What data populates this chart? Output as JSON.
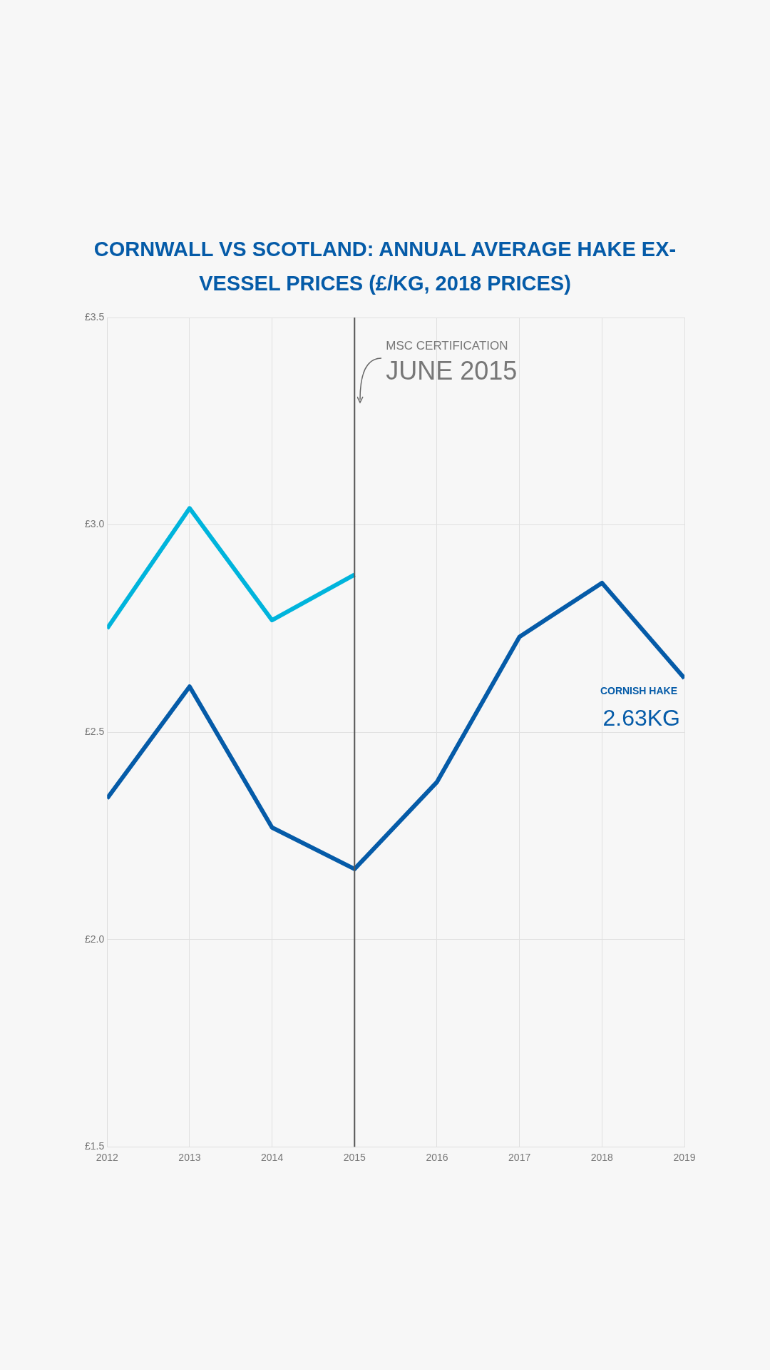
{
  "chart_data": {
    "type": "line",
    "title": "CORNWALL VS SCOTLAND: ANNUAL AVERAGE HAKE EX-VESSEL PRICES (£/KG, 2018 PRICES)",
    "x": [
      2012,
      2013,
      2014,
      2015,
      2016,
      2017,
      2018,
      2019
    ],
    "series": [
      {
        "name": "CORNISH HAKE",
        "color": "#055ba8",
        "values": [
          2.34,
          2.61,
          2.27,
          2.17,
          2.38,
          2.73,
          2.86,
          2.63
        ]
      },
      {
        "color": "#00b4dc",
        "values": [
          2.75,
          3.04,
          2.77,
          2.88,
          null,
          null,
          null,
          null
        ]
      }
    ],
    "xlim": [
      2012,
      2019
    ],
    "xticks": [
      2012,
      2013,
      2014,
      2015,
      2016,
      2017,
      2018,
      2019
    ],
    "ylim": [
      1.5,
      3.5
    ],
    "yticks": [
      {
        "value": 1.5,
        "label": "£1.5"
      },
      {
        "value": 2.0,
        "label": "£2.0"
      },
      {
        "value": 2.5,
        "label": "£2.5"
      },
      {
        "value": 3.0,
        "label": "£3.0"
      },
      {
        "value": 3.5,
        "label": "£3.5"
      }
    ],
    "grid": true,
    "legend": false,
    "marker": "none",
    "line_style": "solid",
    "ref_lines": [
      {
        "axis": "x",
        "value": 2015,
        "label": "JUNE 2015",
        "color": "#555555"
      }
    ],
    "annotations": [
      "MSC CERTIFICATION",
      {
        "text": "2.63KG",
        "x": 2019,
        "y": 2.63
      }
    ]
  }
}
